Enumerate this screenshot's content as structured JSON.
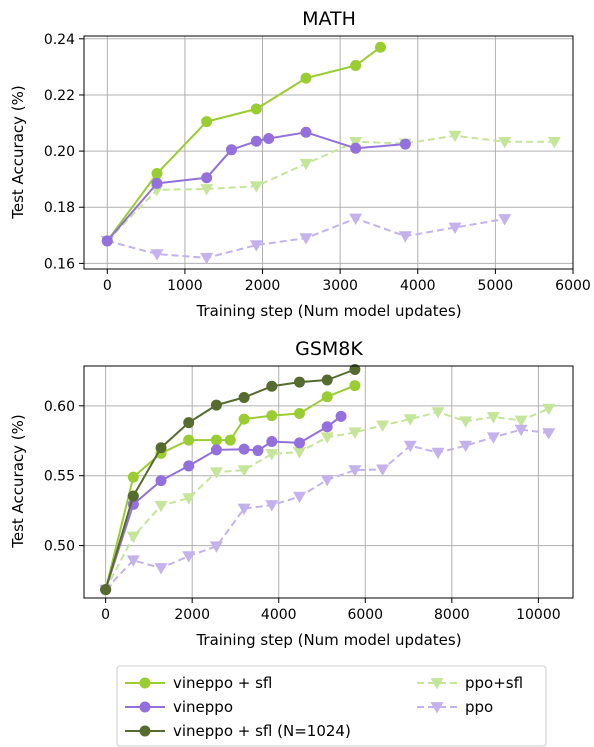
{
  "colors": {
    "vineppo_sfl": "#9acd32",
    "vineppo": "#9370db",
    "vineppo_sfl_1024": "#556b2f",
    "ppo_sfl": "#c5e59a",
    "ppo": "#c3b2ec",
    "grid": "#b0b0b0",
    "axis": "#000000"
  },
  "legend": {
    "position": "bottom-center",
    "entries": [
      {
        "key": "vineppo_sfl",
        "label": "vineppo + sfl",
        "style": "solid",
        "marker": "circle"
      },
      {
        "key": "vineppo",
        "label": "vineppo",
        "style": "solid",
        "marker": "circle"
      },
      {
        "key": "vineppo_sfl_1024",
        "label": "vineppo + sfl (N=1024)",
        "style": "solid",
        "marker": "circle"
      },
      {
        "key": "ppo_sfl",
        "label": "ppo+sfl",
        "style": "dashed",
        "marker": "triangle-down"
      },
      {
        "key": "ppo",
        "label": "ppo",
        "style": "dashed",
        "marker": "triangle-down"
      }
    ]
  },
  "chart_data": [
    {
      "type": "line",
      "title": "MATH",
      "xlabel": "Training step (Num model updates)",
      "ylabel": "Test Accuracy (%)",
      "xlim": [
        -300,
        6000
      ],
      "ylim": [
        0.158,
        0.241
      ],
      "xticks": [
        0,
        1000,
        2000,
        3000,
        4000,
        5000,
        6000
      ],
      "xticklabels": [
        "0",
        "1000",
        "2000",
        "3000",
        "4000",
        "5000",
        "6000"
      ],
      "yticks": [
        0.16,
        0.18,
        0.2,
        0.22,
        0.24
      ],
      "yticklabels": [
        "0.16",
        "0.18",
        "0.20",
        "0.22",
        "0.24"
      ],
      "grid": true,
      "series": [
        {
          "key": "vineppo_sfl",
          "name": "vineppo + sfl",
          "x": [
            0,
            640,
            1280,
            1920,
            2560,
            3200,
            3520
          ],
          "y": [
            0.168,
            0.192,
            0.2105,
            0.215,
            0.226,
            0.2305,
            0.237
          ]
        },
        {
          "key": "vineppo",
          "name": "vineppo",
          "x": [
            0,
            640,
            1280,
            1600,
            1920,
            2080,
            2560,
            3200,
            3840
          ],
          "y": [
            0.168,
            0.1885,
            0.1905,
            0.2005,
            0.2035,
            0.2045,
            0.2067,
            0.201,
            0.2025
          ]
        },
        {
          "key": "ppo_sfl",
          "name": "ppo+sfl",
          "x": [
            0,
            640,
            1280,
            1920,
            2560,
            3200,
            3840,
            4480,
            5120,
            5760
          ],
          "y": [
            0.168,
            0.1862,
            0.1865,
            0.1875,
            0.1955,
            0.2033,
            0.2027,
            0.2055,
            0.2033,
            0.2033
          ]
        },
        {
          "key": "ppo",
          "name": "ppo",
          "x": [
            0,
            640,
            1280,
            1920,
            2560,
            3200,
            3840,
            4480,
            5120
          ],
          "y": [
            0.168,
            0.1633,
            0.162,
            0.1665,
            0.169,
            0.176,
            0.1697,
            0.1728,
            0.1758
          ]
        }
      ]
    },
    {
      "type": "line",
      "title": "GSM8K",
      "xlabel": "Training step (Num model updates)",
      "ylabel": "Test Accuracy (%)",
      "xlim": [
        -500,
        10800
      ],
      "ylim": [
        0.4625,
        0.6285
      ],
      "xticks": [
        0,
        2000,
        4000,
        6000,
        8000,
        10000
      ],
      "xticklabels": [
        "0",
        "2000",
        "4000",
        "6000",
        "8000",
        "10000"
      ],
      "yticks": [
        0.5,
        0.55,
        0.6
      ],
      "yticklabels": [
        "0.50",
        "0.55",
        "0.60"
      ],
      "grid": true,
      "series": [
        {
          "key": "vineppo_sfl",
          "name": "vineppo + sfl",
          "x": [
            0,
            640,
            1280,
            1920,
            2560,
            2880,
            3200,
            3840,
            4480,
            5120,
            5760
          ],
          "y": [
            0.4685,
            0.549,
            0.566,
            0.5755,
            0.5755,
            0.5755,
            0.5905,
            0.593,
            0.5945,
            0.6065,
            0.6145
          ]
        },
        {
          "key": "vineppo",
          "name": "vineppo",
          "x": [
            0,
            640,
            1280,
            1920,
            2560,
            3200,
            3520,
            3840,
            4480,
            5120,
            5440
          ],
          "y": [
            0.4685,
            0.5295,
            0.5465,
            0.557,
            0.5685,
            0.569,
            0.568,
            0.5745,
            0.5735,
            0.585,
            0.5925
          ]
        },
        {
          "key": "vineppo_sfl_1024",
          "name": "vineppo + sfl (N=1024)",
          "x": [
            0,
            640,
            1280,
            1920,
            2560,
            3200,
            3840,
            4480,
            5120,
            5760
          ],
          "y": [
            0.4685,
            0.5355,
            0.57,
            0.588,
            0.6005,
            0.606,
            0.614,
            0.617,
            0.6185,
            0.626
          ]
        },
        {
          "key": "ppo_sfl",
          "name": "ppo+sfl",
          "x": [
            0,
            640,
            1280,
            1920,
            2560,
            3200,
            3840,
            4480,
            5120,
            5760,
            6400,
            7040,
            7680,
            8320,
            8960,
            9600,
            10240
          ],
          "y": [
            0.4685,
            0.5065,
            0.5285,
            0.534,
            0.5525,
            0.554,
            0.5655,
            0.567,
            0.5775,
            0.581,
            0.586,
            0.5905,
            0.5955,
            0.589,
            0.592,
            0.5895,
            0.598
          ]
        },
        {
          "key": "ppo",
          "name": "ppo",
          "x": [
            0,
            640,
            1280,
            1920,
            2560,
            3200,
            3840,
            4480,
            5120,
            5760,
            6400,
            7040,
            7680,
            8320,
            8960,
            9600,
            10240
          ],
          "y": [
            0.4685,
            0.4895,
            0.484,
            0.4925,
            0.4995,
            0.5265,
            0.529,
            0.535,
            0.547,
            0.554,
            0.5545,
            0.5715,
            0.5665,
            0.5715,
            0.5775,
            0.583,
            0.5805
          ]
        }
      ]
    }
  ]
}
